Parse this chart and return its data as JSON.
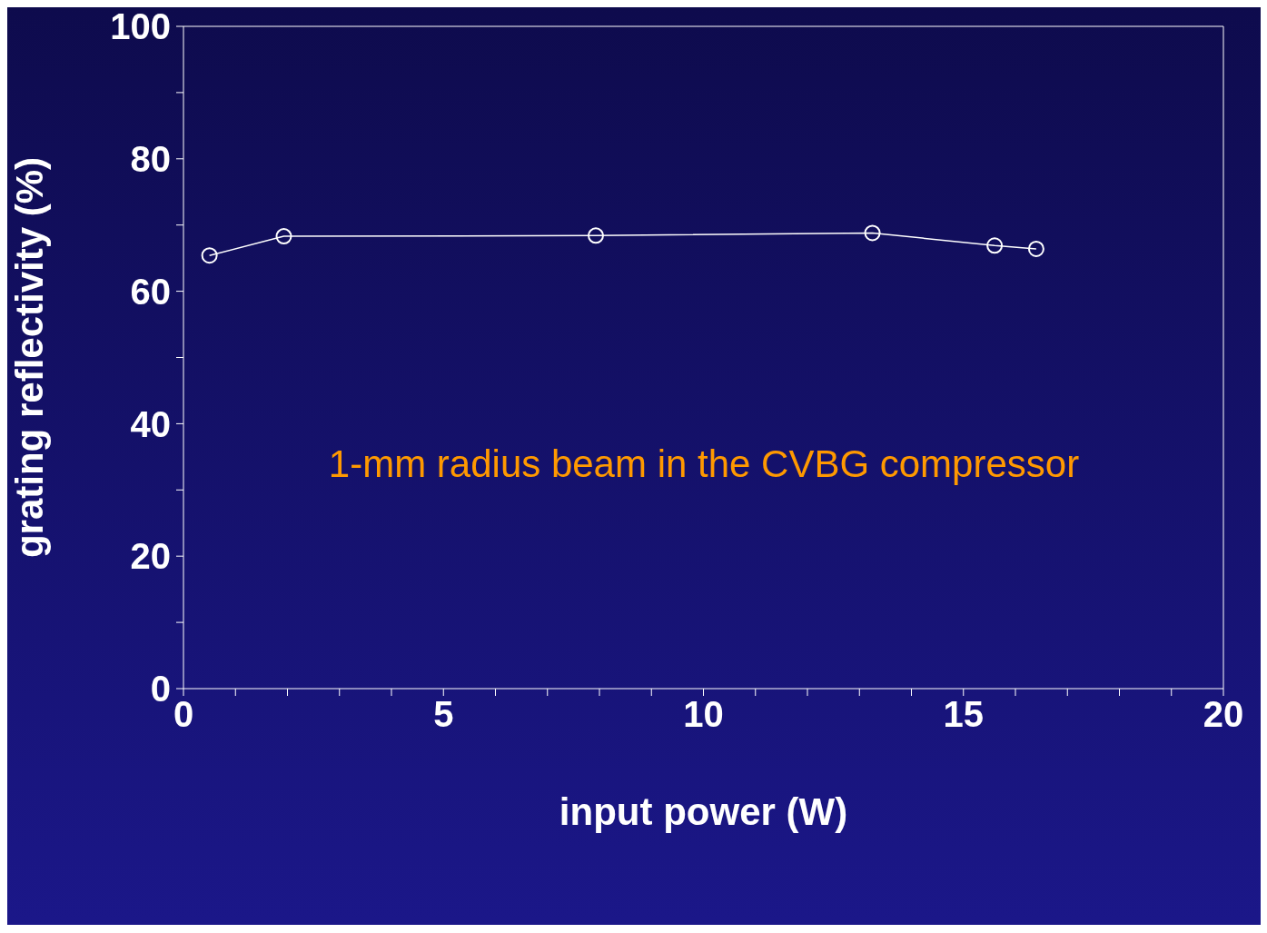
{
  "chart_data": {
    "type": "line",
    "xlabel": "input power (W)",
    "ylabel": "grating reflectivity (%)",
    "annotations": [
      "1-mm radius beam in the CVBG compressor"
    ],
    "x": [
      0.5,
      1.93,
      7.93,
      13.25,
      15.6,
      16.4
    ],
    "series": [
      {
        "color": "#ffffff",
        "values": [
          65.4,
          68.3,
          68.4,
          68.8,
          66.9,
          66.4
        ]
      }
    ],
    "xlim": [
      0,
      20
    ],
    "xticks": [
      0,
      {
        "value": 1,
        "label": null
      },
      {
        "value": 2,
        "label": null
      },
      {
        "value": 3,
        "label": null
      },
      {
        "value": 4,
        "label": null
      },
      5,
      {
        "value": 6,
        "label": null
      },
      {
        "value": 7,
        "label": null
      },
      {
        "value": 8,
        "label": null
      },
      {
        "value": 9,
        "label": null
      },
      10,
      {
        "value": 11,
        "label": null
      },
      {
        "value": 12,
        "label": null
      },
      {
        "value": 13,
        "label": null
      },
      {
        "value": 14,
        "label": null
      },
      15,
      {
        "value": 16,
        "label": null
      },
      {
        "value": 17,
        "label": null
      },
      {
        "value": 18,
        "label": null
      },
      {
        "value": 19,
        "label": null
      },
      20
    ],
    "ylim": [
      0,
      100
    ],
    "yticks": [
      0,
      {
        "value": 10,
        "label": null
      },
      20,
      {
        "value": 30,
        "label": null
      },
      40,
      {
        "value": 50,
        "label": null
      },
      60,
      {
        "value": 70,
        "label": null
      },
      80,
      {
        "value": 90,
        "label": null
      },
      100
    ],
    "marker": "circle",
    "line_style": "solid"
  }
}
